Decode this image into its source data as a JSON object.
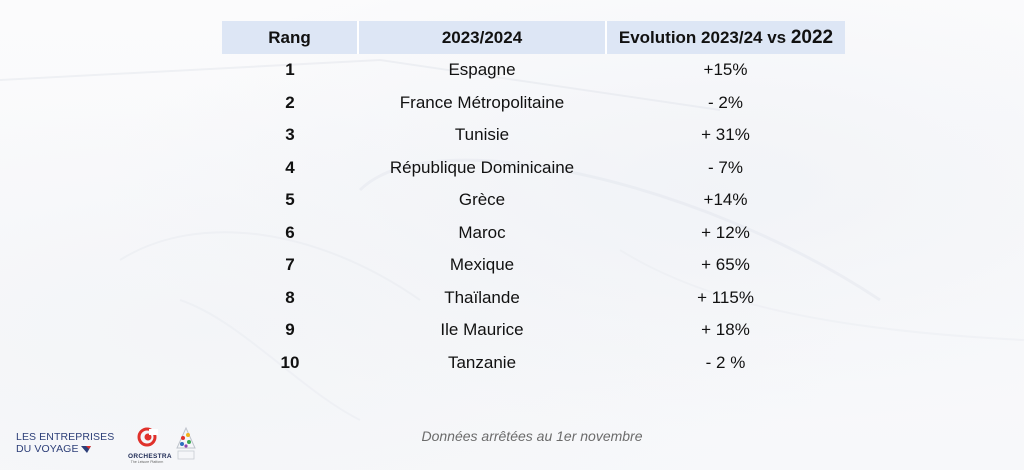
{
  "table": {
    "headers": {
      "rank": "Rang",
      "season": "2023/2024",
      "evolution_prefix": "Evolution 2023/24 vs ",
      "evolution_year": "2022"
    },
    "rows": [
      {
        "rank": "1",
        "destination": "Espagne",
        "evolution": "+15%"
      },
      {
        "rank": "2",
        "destination": "France Métropolitaine",
        "evolution": "- 2%"
      },
      {
        "rank": "3",
        "destination": "Tunisie",
        "evolution": "+ 31%"
      },
      {
        "rank": "4",
        "destination": "République Dominicaine",
        "evolution": "- 7%"
      },
      {
        "rank": "5",
        "destination": "Grèce",
        "evolution": "+14%"
      },
      {
        "rank": "6",
        "destination": "Maroc",
        "evolution": "+ 12%"
      },
      {
        "rank": "7",
        "destination": "Mexique",
        "evolution": "+ 65%"
      },
      {
        "rank": "8",
        "destination": "Thaïlande",
        "evolution": "+ 115%"
      },
      {
        "rank": "9",
        "destination": "Ile Maurice",
        "evolution": "+ 18%"
      },
      {
        "rank": "10",
        "destination": "Tanzanie",
        "evolution": "- 2 %"
      }
    ]
  },
  "footnote": "Données arrêtées au 1er novembre",
  "logos": {
    "entreprises_voyage_line1": "LES ENTREPRISES",
    "entreprises_voyage_line2": "DU VOYAGE",
    "orchestra_name": "ORCHESTRA",
    "orchestra_tagline": "The Leisure Platform",
    "orchestra_accent": "#e0312b",
    "ev_color": "#2c3e78"
  }
}
